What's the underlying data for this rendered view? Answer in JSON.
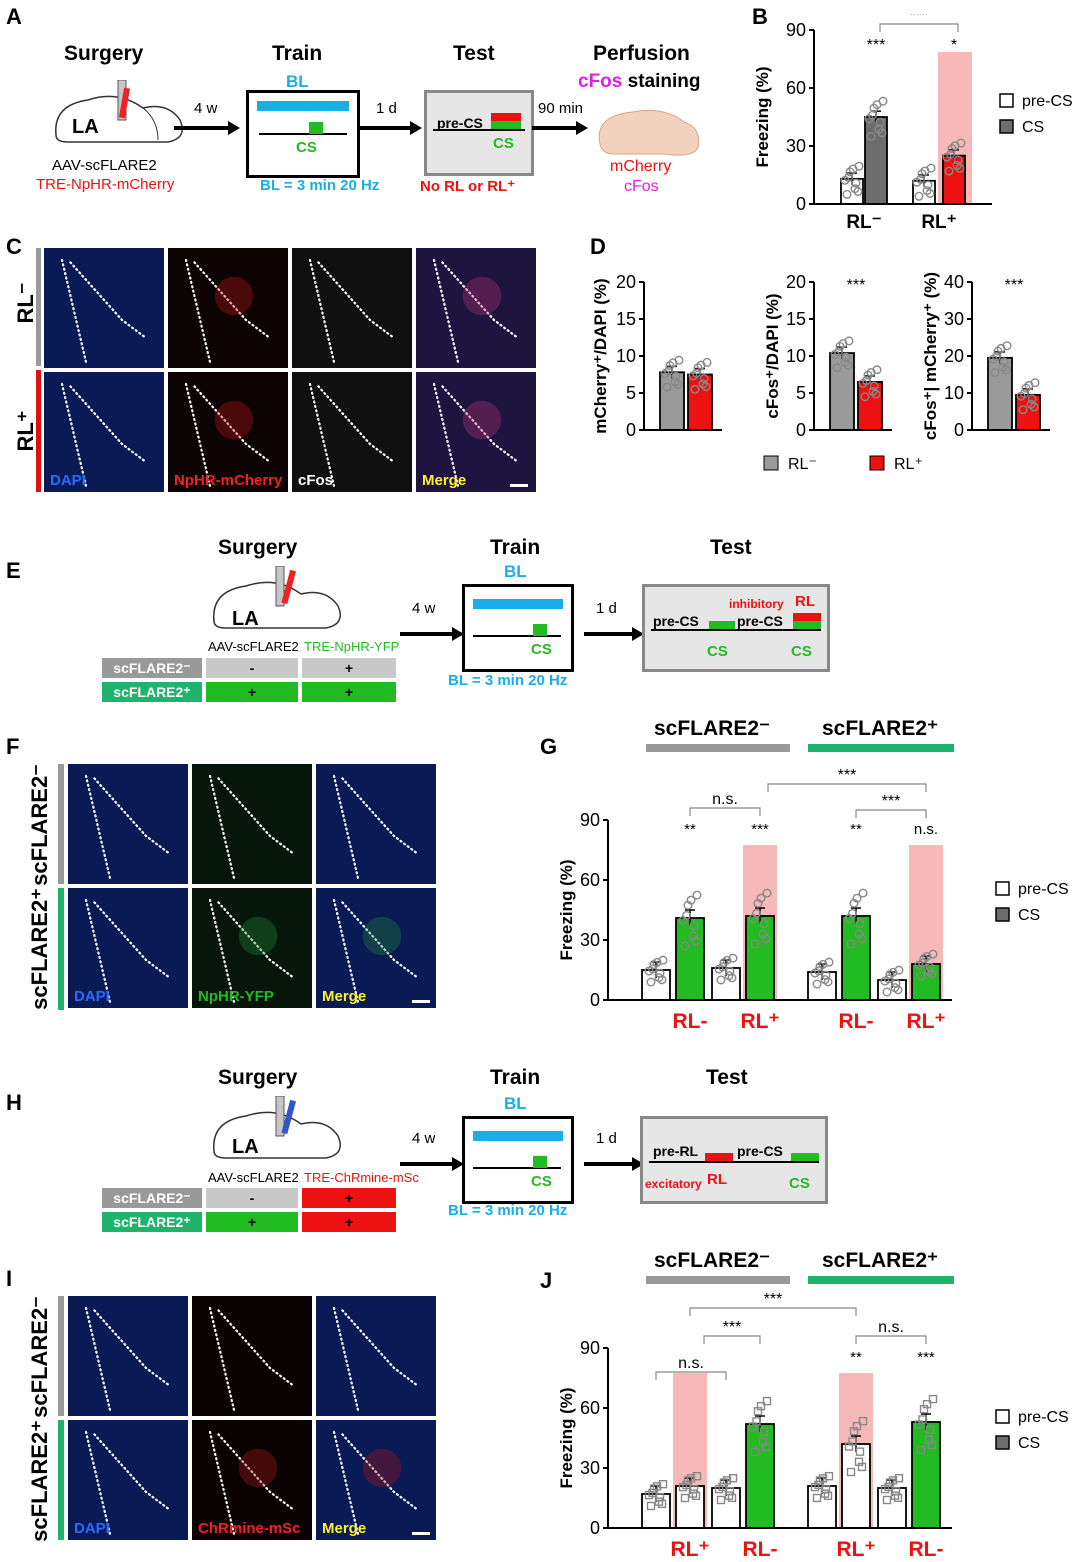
{
  "panels": {
    "A": "A",
    "B": "B",
    "C": "C",
    "D": "D",
    "E": "E",
    "F": "F",
    "G": "G",
    "H": "H",
    "I": "I",
    "J": "J"
  },
  "a": {
    "surgery": "Surgery",
    "train": "Train",
    "test": "Test",
    "perfusion": "Perfusion",
    "cfos_staining": "cFos",
    "staining": "staining",
    "la": "LA",
    "virus1": "AAV-scFLARE2",
    "virus2": "TRE-NpHR-mCherry",
    "arrow1": "4 w",
    "arrow2": "1 d",
    "arrow3": "90 min",
    "bl": "BL",
    "cs": "CS",
    "precs": "pre-CS",
    "bl_eq": "BL = 3 min 20 Hz",
    "test_note": "No RL or RL⁺",
    "mcherry": "mCherry",
    "cfos": "cFos"
  },
  "b": {
    "ylabel": "Freezing (%)",
    "ticks": [
      "0",
      "30",
      "60",
      "90"
    ],
    "groups": [
      "RL⁻",
      "RL⁺"
    ],
    "sig_top": "***",
    "sig1": "***",
    "sig2": "*",
    "legend": [
      "pre-CS",
      "CS"
    ]
  },
  "c": {
    "row1": "RL⁻",
    "row2": "RL⁺",
    "labels": [
      "DAPI",
      "NpHR-mCherry",
      "cFos",
      "Merge"
    ]
  },
  "d": {
    "y1": "mCherry⁺/DAPI (%)",
    "y2": "cFos⁺/DAPI (%)",
    "y3": "cFos⁺| mCherry⁺ (%)",
    "ticks20": [
      "0",
      "5",
      "10",
      "15",
      "20"
    ],
    "ticks40": [
      "0",
      "10",
      "20",
      "30",
      "40"
    ],
    "sig": "***",
    "legend": [
      "RL⁻",
      "RL⁺"
    ]
  },
  "e": {
    "surgery": "Surgery",
    "train": "Train",
    "test": "Test",
    "la": "LA",
    "virus1": "AAV-scFLARE2",
    "virus2": "TRE-NpHR-YFP",
    "rowneg": "scFLARE2⁻",
    "rowpos": "scFLARE2⁺",
    "minus": "-",
    "plus": "+",
    "arrow1": "4 w",
    "arrow2": "1 d",
    "bl": "BL",
    "cs": "CS",
    "bl_eq": "BL = 3 min 20 Hz",
    "inhib": "inhibitory",
    "rl": "RL",
    "precs": "pre-CS"
  },
  "f": {
    "row1": "scFLARE2⁻",
    "row2": "scFLARE2⁺",
    "labels": [
      "DAPI",
      "NpHR-YFP",
      "Merge"
    ]
  },
  "g": {
    "hdr_neg": "scFLARE2⁻",
    "hdr_pos": "scFLARE2⁺",
    "ylabel": "Freezing (%)",
    "ticks": [
      "0",
      "30",
      "60",
      "90"
    ],
    "xlabels": [
      "RL-",
      "RL⁺",
      "RL-",
      "RL⁺"
    ],
    "sigs": [
      "**",
      "***",
      "**",
      "n.s."
    ],
    "brk": [
      "n.s.",
      "***",
      "***"
    ],
    "legend": [
      "pre-CS",
      "CS"
    ]
  },
  "h": {
    "surgery": "Surgery",
    "train": "Train",
    "test": "Test",
    "la": "LA",
    "virus1": "AAV-scFLARE2",
    "virus2": "TRE-ChRmine-mSc",
    "rowneg": "scFLARE2⁻",
    "rowpos": "scFLARE2⁺",
    "minus": "-",
    "plus": "+",
    "arrow1": "4 w",
    "arrow2": "1 d",
    "bl": "BL",
    "cs": "CS",
    "bl_eq": "BL = 3 min 20 Hz",
    "prerl": "pre-RL",
    "precs": "pre-CS",
    "excit": "excitatory",
    "rl": "RL"
  },
  "i": {
    "row1": "scFLARE2⁻",
    "row2": "scFLARE2⁺",
    "labels": [
      "DAPI",
      "ChRmine-mSc",
      "Merge"
    ]
  },
  "j": {
    "hdr_neg": "scFLARE2⁻",
    "hdr_pos": "scFLARE2⁺",
    "ylabel": "Freezing (%)",
    "ticks": [
      "0",
      "30",
      "60",
      "90"
    ],
    "xlabels": [
      "RL⁺",
      "RL-",
      "RL⁺",
      "RL-"
    ],
    "sigs": [
      "**",
      "***"
    ],
    "brk": [
      "n.s.",
      "***",
      "***",
      "n.s."
    ],
    "legend": [
      "pre-CS",
      "CS"
    ]
  },
  "chart_data": [
    {
      "panel": "B",
      "type": "bar",
      "title": "",
      "ylabel": "Freezing (%)",
      "ylim": [
        0,
        90
      ],
      "categories": [
        "RL⁻",
        "RL⁺"
      ],
      "series": [
        {
          "name": "pre-CS",
          "values": [
            13,
            12
          ]
        },
        {
          "name": "CS",
          "values": [
            45,
            25
          ]
        }
      ],
      "colors": {
        "cs_rlminus": "#6d6d6d",
        "cs_rlplus": "#ee1111"
      }
    },
    {
      "panel": "D1",
      "type": "bar",
      "ylabel": "mCherry⁺/DAPI (%)",
      "ylim": [
        0,
        20
      ],
      "categories": [
        "RL⁻",
        "RL⁺"
      ],
      "values": [
        7.8,
        7.5
      ]
    },
    {
      "panel": "D2",
      "type": "bar",
      "ylabel": "cFos⁺/DAPI (%)",
      "ylim": [
        0,
        20
      ],
      "categories": [
        "RL⁻",
        "RL⁺"
      ],
      "values": [
        10.4,
        6.5
      ]
    },
    {
      "panel": "D3",
      "type": "bar",
      "ylabel": "cFos⁺| mCherry⁺ (%)",
      "ylim": [
        0,
        40
      ],
      "categories": [
        "RL⁻",
        "RL⁺"
      ],
      "values": [
        19.5,
        9.5
      ]
    },
    {
      "panel": "G",
      "type": "bar",
      "ylabel": "Freezing (%)",
      "ylim": [
        0,
        90
      ],
      "categories": [
        "pre-CS",
        "CS (RL-)",
        "pre-CS",
        "CS (RL+)",
        "pre-CS",
        "CS (RL-)",
        "pre-CS",
        "CS (RL+)"
      ],
      "values": [
        15,
        41,
        16,
        42,
        14,
        42,
        10,
        18
      ],
      "groups": [
        "scFLARE2⁻",
        "scFLARE2⁻",
        "scFLARE2⁻",
        "scFLARE2⁻",
        "scFLARE2⁺",
        "scFLARE2⁺",
        "scFLARE2⁺",
        "scFLARE2⁺"
      ]
    },
    {
      "panel": "J",
      "type": "bar",
      "ylabel": "Freezing (%)",
      "ylim": [
        0,
        90
      ],
      "categories": [
        "pre-RL",
        "RL+",
        "pre-CS",
        "CS (RL-)",
        "pre-RL",
        "RL+",
        "pre-CS",
        "CS (RL-)"
      ],
      "values": [
        17,
        21,
        20,
        52,
        21,
        42,
        20,
        53
      ],
      "groups": [
        "scFLARE2⁻",
        "scFLARE2⁻",
        "scFLARE2⁻",
        "scFLARE2⁻",
        "scFLARE2⁺",
        "scFLARE2⁺",
        "scFLARE2⁺",
        "scFLARE2⁺"
      ]
    }
  ],
  "colors": {
    "blue": "#19aee8",
    "green": "#22bb22",
    "red": "#ee1111",
    "magenta": "#e020e0",
    "grey": "#8a8a8a",
    "pink": "#f7b8b8",
    "teal": "#1fb36b"
  }
}
